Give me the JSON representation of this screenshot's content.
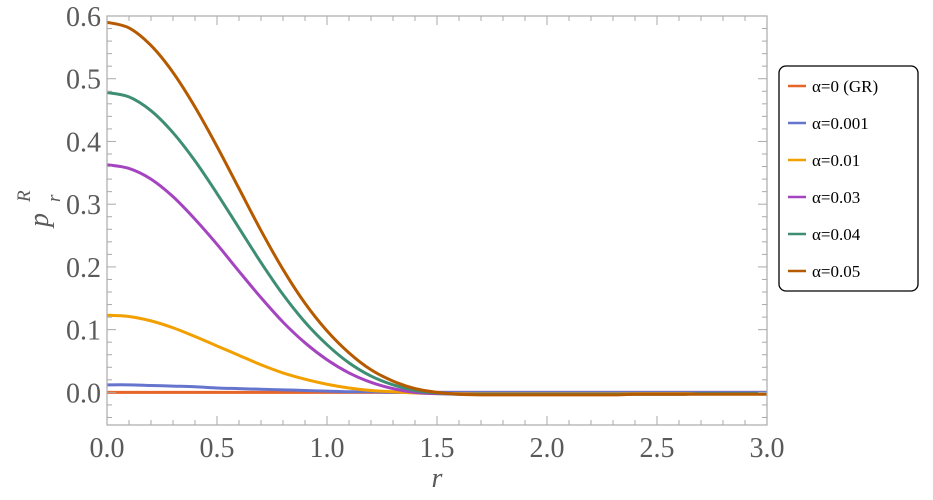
{
  "chart_data": {
    "type": "line",
    "title": "",
    "xlabel": "r",
    "ylabel": "p",
    "ylabel_sub": "r",
    "ylabel_sup": "R",
    "xlim": [
      0,
      3
    ],
    "ylim": [
      -0.052,
      0.6
    ],
    "xticks": [
      "0.0",
      "0.5",
      "1.0",
      "1.5",
      "2.0",
      "2.5",
      "3.0"
    ],
    "yticks": [
      "0.0",
      "0.1",
      "0.2",
      "0.3",
      "0.4",
      "0.5",
      "0.6"
    ],
    "grid": false,
    "legend_placement": "right",
    "x": [
      0,
      0.1,
      0.2,
      0.3,
      0.4,
      0.5,
      0.6,
      0.7,
      0.8,
      0.9,
      1.0,
      1.1,
      1.2,
      1.3,
      1.4,
      1.5,
      1.6,
      1.7,
      1.8,
      1.9,
      2.0,
      2.1,
      2.2,
      2.3,
      2.4,
      2.5,
      2.6,
      2.7,
      2.8,
      2.9,
      3.0
    ],
    "series": [
      {
        "name": "α=0 (GR)",
        "color": "#E8652A",
        "values": [
          0,
          0,
          0,
          0,
          0,
          0,
          0,
          0,
          0,
          0,
          0,
          0,
          0,
          0,
          0,
          0,
          0,
          0,
          0,
          0,
          0,
          0,
          0,
          0,
          0,
          0,
          0,
          0,
          0,
          0,
          0
        ]
      },
      {
        "name": "α=0.001",
        "color": "#6574CC",
        "values": [
          0.012,
          0.012,
          0.011,
          0.01,
          0.009,
          0.007,
          0.006,
          0.005,
          0.004,
          0.003,
          0.002,
          0.001,
          0.001,
          0,
          0,
          0,
          0,
          0,
          0,
          0,
          0,
          0,
          0,
          0,
          0,
          0,
          0,
          0,
          0,
          0,
          0
        ]
      },
      {
        "name": "α=0.01",
        "color": "#F2A000",
        "values": [
          0.123,
          0.121,
          0.114,
          0.103,
          0.089,
          0.074,
          0.059,
          0.044,
          0.031,
          0.021,
          0.013,
          0.007,
          0.003,
          0.001,
          -0.001,
          -0.002,
          -0.002,
          -0.002,
          -0.002,
          -0.002,
          -0.002,
          -0.002,
          -0.002,
          -0.002,
          -0.002,
          -0.002,
          -0.002,
          -0.002,
          -0.002,
          -0.002,
          -0.002
        ]
      },
      {
        "name": "α=0.03",
        "color": "#A544C0",
        "values": [
          0.363,
          0.357,
          0.34,
          0.312,
          0.276,
          0.236,
          0.193,
          0.151,
          0.112,
          0.079,
          0.052,
          0.031,
          0.016,
          0.006,
          0.0,
          -0.002,
          -0.003,
          -0.003,
          -0.003,
          -0.003,
          -0.003,
          -0.003,
          -0.003,
          -0.003,
          -0.003,
          -0.003,
          -0.003,
          -0.002,
          -0.002,
          -0.002,
          -0.002
        ]
      },
      {
        "name": "α=0.04",
        "color": "#3E8E74",
        "values": [
          0.478,
          0.471,
          0.449,
          0.414,
          0.369,
          0.317,
          0.262,
          0.207,
          0.156,
          0.112,
          0.076,
          0.047,
          0.026,
          0.012,
          0.003,
          -0.001,
          -0.003,
          -0.003,
          -0.003,
          -0.003,
          -0.003,
          -0.003,
          -0.003,
          -0.003,
          -0.003,
          -0.003,
          -0.003,
          -0.002,
          -0.002,
          -0.002,
          -0.002
        ]
      },
      {
        "name": "α=0.05",
        "color": "#B65A00",
        "values": [
          0.59,
          0.581,
          0.553,
          0.51,
          0.455,
          0.392,
          0.325,
          0.258,
          0.196,
          0.142,
          0.098,
          0.063,
          0.036,
          0.018,
          0.006,
          0.0,
          -0.003,
          -0.004,
          -0.004,
          -0.004,
          -0.004,
          -0.004,
          -0.004,
          -0.004,
          -0.003,
          -0.003,
          -0.003,
          -0.003,
          -0.003,
          -0.003,
          -0.003
        ]
      }
    ]
  }
}
